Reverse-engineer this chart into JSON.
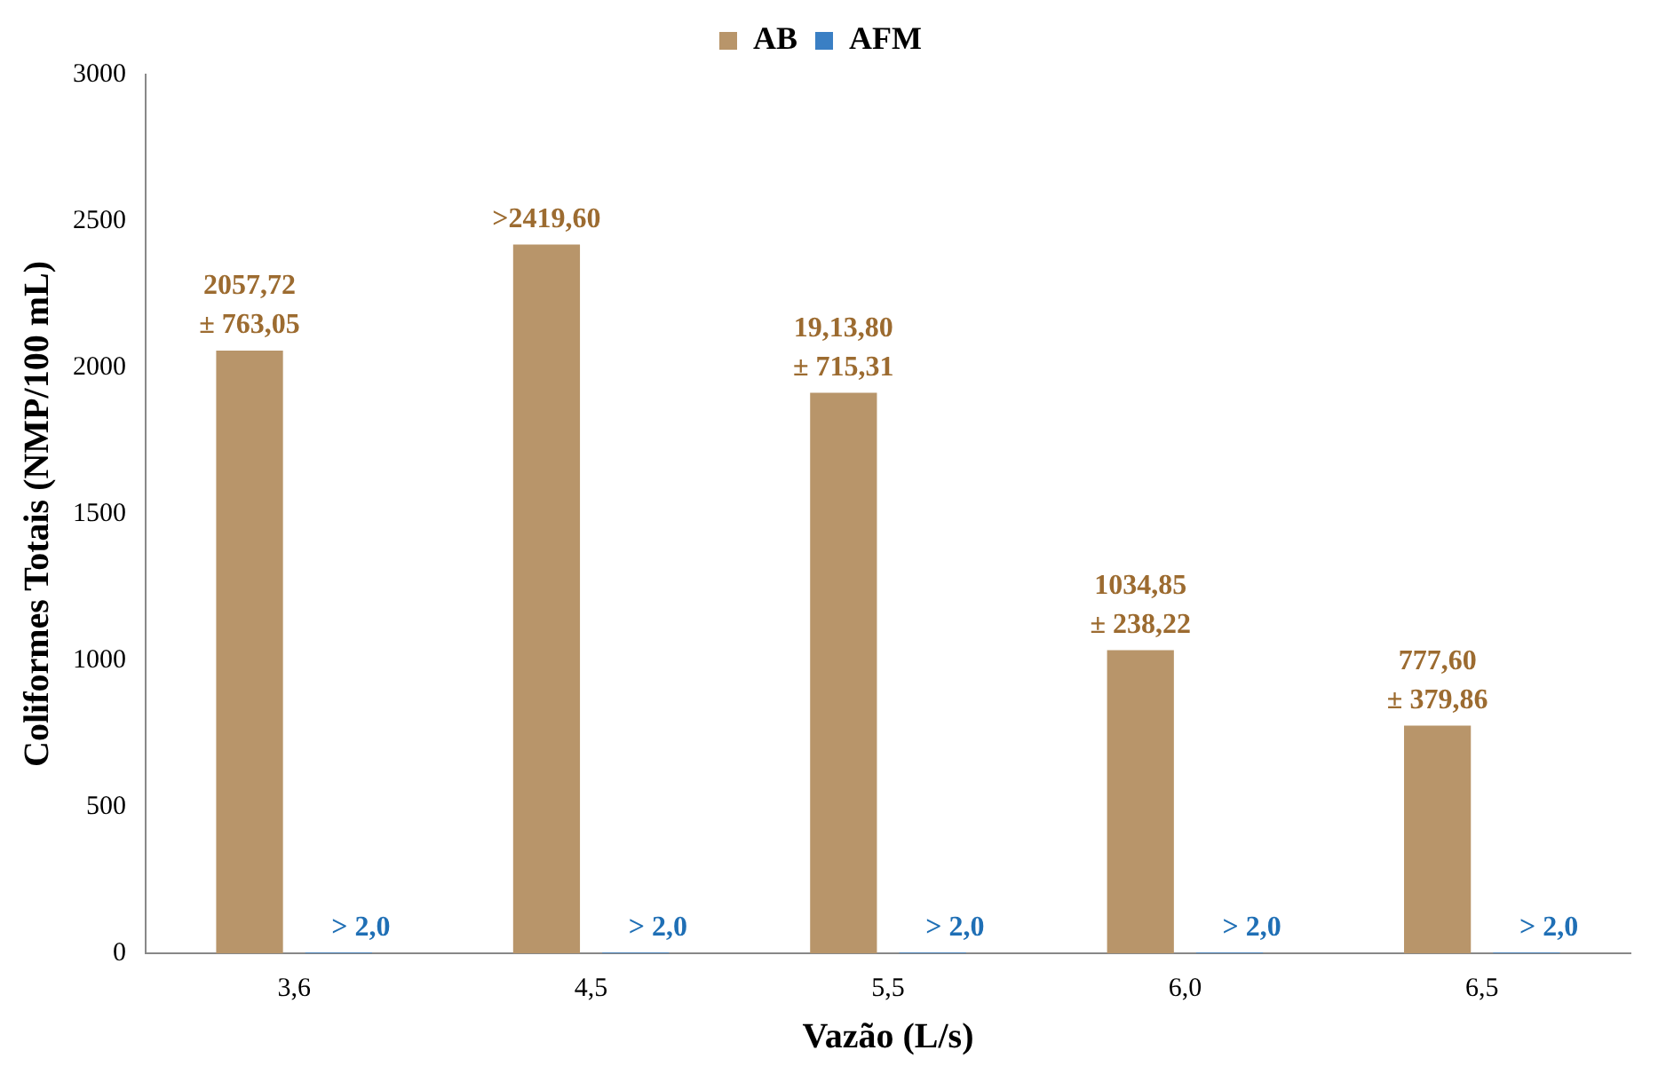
{
  "chart_data": {
    "type": "bar",
    "xlabel": "Vazão (L/s)",
    "ylabel": "Coliformes Totais (NMP/100 mL)",
    "categories": [
      "3,6",
      "4,5",
      "5,5",
      "6,0",
      "6,5"
    ],
    "series": [
      {
        "name": "AB",
        "color": "#b8956a",
        "values": [
          2057.72,
          2419.6,
          1913.8,
          1034.85,
          777.6
        ],
        "value_labels": [
          "2057,72\n± 763,05",
          ">2419,60",
          "19,13,80\n± 715,31",
          "1034,85\n± 238,22",
          "777,60\n± 379,86"
        ]
      },
      {
        "name": "AFM",
        "color": "#3a7fc4",
        "values": [
          2.0,
          2.0,
          2.0,
          2.0,
          2.0
        ],
        "value_labels": [
          "> 2,0",
          "> 2,0",
          "> 2,0",
          "> 2,0",
          "> 2,0"
        ]
      }
    ],
    "ylim": [
      0,
      3000
    ],
    "yticks": [
      0,
      500,
      1000,
      1500,
      2000,
      2500,
      3000
    ],
    "grid": false,
    "legend": "top"
  }
}
